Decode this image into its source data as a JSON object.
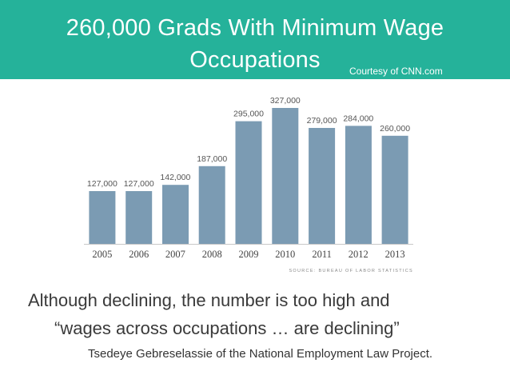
{
  "header": {
    "title_line1": "260,000 Grads With Minimum Wage",
    "title_line2": "Occupations",
    "courtesy": "Courtesy of CNN.com"
  },
  "colors": {
    "banner": "#25b29a",
    "bar": "#7b9bb3",
    "axis": "#c8c8c8"
  },
  "chart_data": {
    "type": "bar",
    "categories": [
      "2005",
      "2006",
      "2007",
      "2008",
      "2009",
      "2010",
      "2011",
      "2012",
      "2013"
    ],
    "values": [
      127000,
      127000,
      142000,
      187000,
      295000,
      327000,
      279000,
      284000,
      260000
    ],
    "value_labels": [
      "127,000",
      "127,000",
      "142,000",
      "187,000",
      "295,000",
      "327,000",
      "279,000",
      "284,000",
      "260,000"
    ],
    "source": "SOURCE: BUREAU OF LABOR STATISTICS",
    "ylim": [
      0,
      327000
    ],
    "grid": false
  },
  "caption": {
    "line1": "Although declining, the number is too high and",
    "line2": "“wages across occupations … are declining”",
    "line3": "Tsedeye Gebreselassie of the  National Employment Law Project."
  }
}
